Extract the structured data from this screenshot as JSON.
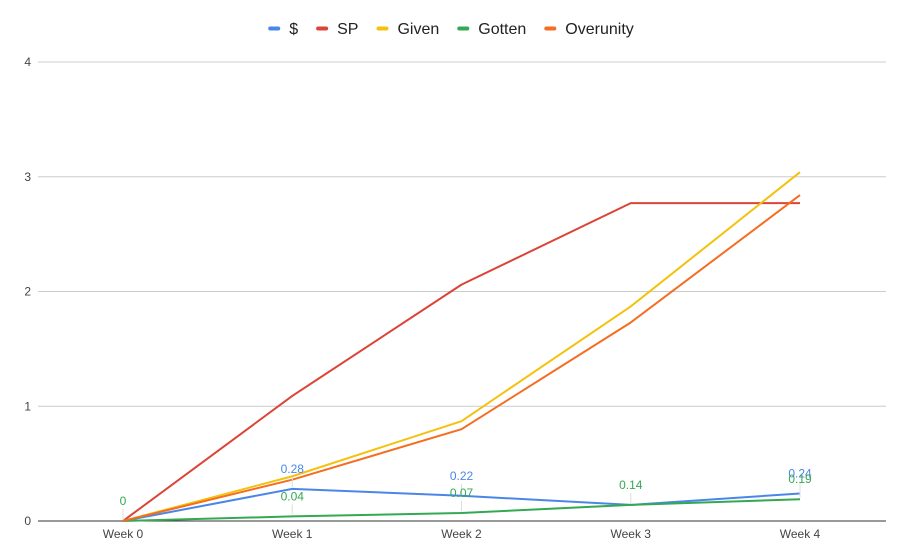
{
  "chart_data": {
    "type": "line",
    "categories": [
      "Week 0",
      "Week 1",
      "Week 2",
      "Week 3",
      "Week 4"
    ],
    "series": [
      {
        "name": "$",
        "color": "#4a86e8",
        "values": [
          0,
          0.28,
          0.22,
          0.14,
          0.24
        ],
        "labels": [
          "",
          "0.28",
          "0.22",
          "",
          "0.24"
        ]
      },
      {
        "name": "SP",
        "color": "#db4437",
        "values": [
          0,
          1.09,
          2.06,
          2.77,
          2.77
        ],
        "labels": [
          "",
          "",
          "",
          "",
          ""
        ]
      },
      {
        "name": "Given",
        "color": "#f4c20d",
        "values": [
          0,
          0.39,
          0.87,
          1.87,
          3.04
        ],
        "labels": [
          "",
          "",
          "",
          "",
          ""
        ]
      },
      {
        "name": "Gotten",
        "color": "#34a853",
        "values": [
          0,
          0.04,
          0.07,
          0.14,
          0.19
        ],
        "labels": [
          "0",
          "0.04",
          "0.07",
          "0.14",
          "0.19"
        ]
      },
      {
        "name": "Overunity",
        "color": "#f46d21",
        "values": [
          0,
          0.36,
          0.8,
          1.73,
          2.84
        ],
        "labels": [
          "",
          "",
          "",
          "",
          ""
        ]
      }
    ],
    "yticks": [
      "0",
      "1",
      "2",
      "3",
      "4"
    ],
    "ylim": [
      0,
      4
    ],
    "legend_position": "top",
    "grid": true
  }
}
